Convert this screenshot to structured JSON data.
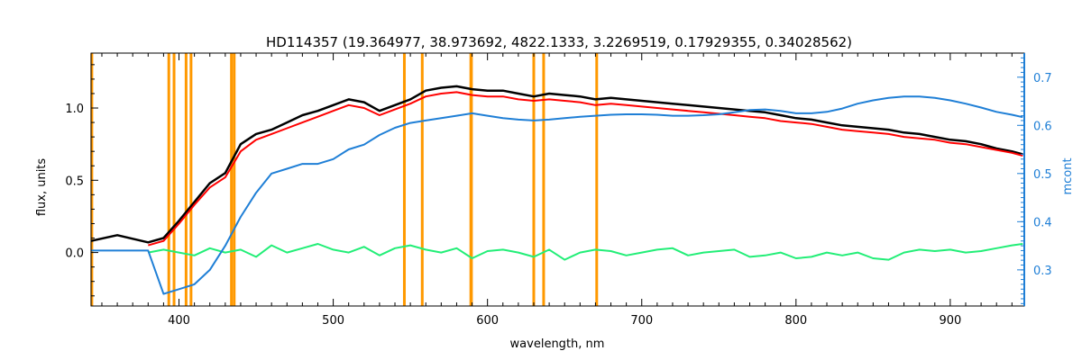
{
  "chart_data": {
    "type": "line",
    "title": "HD114357    (19.364977, 38.973692, 4822.1333, 3.2269519, 0.17929355, 0.34028562)",
    "xlabel": "wavelength, nm",
    "ylabel": "flux, units",
    "ylabel_right": "mcont",
    "xlim": [
      343,
      948
    ],
    "ylim": [
      -0.37,
      1.38
    ],
    "ylim_right": [
      0.225,
      0.75
    ],
    "x_ticks": [
      400,
      500,
      600,
      700,
      800,
      900
    ],
    "x_ticklabels": [
      "400",
      "500",
      "600",
      "700",
      "800",
      "900"
    ],
    "y_ticks": [
      0.0,
      0.5,
      1.0
    ],
    "y_ticklabels": [
      "0.0",
      "0.5",
      "1.0"
    ],
    "y_right_ticks": [
      0.3,
      0.4,
      0.5,
      0.6,
      0.7
    ],
    "y_right_ticklabels": [
      "0.3",
      "0.4",
      "0.5",
      "0.6",
      "0.7"
    ],
    "grid": false,
    "vertical_lines_x": [
      343.5,
      393.4,
      396.8,
      404.6,
      407.8,
      434.0,
      435.8,
      546.1,
      557.7,
      589.2,
      589.6,
      630.0,
      636.4,
      670.8
    ],
    "series": [
      {
        "role": "observed",
        "color": "#000000",
        "x": [
          343,
          360,
          380,
          390,
          400,
          410,
          420,
          430,
          440,
          450,
          460,
          470,
          480,
          490,
          500,
          510,
          520,
          530,
          540,
          550,
          560,
          570,
          580,
          590,
          600,
          610,
          620,
          630,
          640,
          650,
          660,
          670,
          680,
          690,
          700,
          710,
          720,
          730,
          740,
          750,
          760,
          770,
          780,
          790,
          800,
          810,
          820,
          830,
          840,
          850,
          860,
          870,
          880,
          890,
          900,
          910,
          920,
          930,
          940,
          947
        ],
        "y": [
          0.08,
          0.12,
          0.07,
          0.1,
          0.22,
          0.35,
          0.48,
          0.55,
          0.75,
          0.82,
          0.85,
          0.9,
          0.95,
          0.98,
          1.02,
          1.06,
          1.04,
          0.98,
          1.02,
          1.06,
          1.12,
          1.14,
          1.15,
          1.13,
          1.12,
          1.12,
          1.1,
          1.08,
          1.1,
          1.09,
          1.08,
          1.06,
          1.07,
          1.06,
          1.05,
          1.04,
          1.03,
          1.02,
          1.01,
          1.0,
          0.99,
          0.98,
          0.97,
          0.95,
          0.93,
          0.92,
          0.9,
          0.88,
          0.87,
          0.86,
          0.85,
          0.83,
          0.82,
          0.8,
          0.78,
          0.77,
          0.75,
          0.72,
          0.7,
          0.68
        ]
      },
      {
        "role": "model",
        "color": "#ff0000",
        "x": [
          380,
          390,
          400,
          410,
          420,
          430,
          440,
          450,
          460,
          470,
          480,
          490,
          500,
          510,
          520,
          530,
          540,
          550,
          560,
          570,
          580,
          590,
          600,
          610,
          620,
          630,
          640,
          650,
          660,
          670,
          680,
          690,
          700,
          710,
          720,
          730,
          740,
          750,
          760,
          770,
          780,
          790,
          800,
          810,
          820,
          830,
          840,
          850,
          860,
          870,
          880,
          890,
          900,
          910,
          920,
          930,
          940,
          947
        ],
        "y": [
          0.05,
          0.08,
          0.2,
          0.33,
          0.45,
          0.52,
          0.7,
          0.78,
          0.82,
          0.86,
          0.9,
          0.94,
          0.98,
          1.02,
          1.0,
          0.95,
          0.99,
          1.03,
          1.08,
          1.1,
          1.11,
          1.09,
          1.08,
          1.08,
          1.06,
          1.05,
          1.06,
          1.05,
          1.04,
          1.02,
          1.03,
          1.02,
          1.01,
          1.0,
          0.99,
          0.98,
          0.97,
          0.96,
          0.95,
          0.94,
          0.93,
          0.91,
          0.9,
          0.89,
          0.87,
          0.85,
          0.84,
          0.83,
          0.82,
          0.8,
          0.79,
          0.78,
          0.76,
          0.75,
          0.73,
          0.71,
          0.69,
          0.67
        ]
      },
      {
        "role": "residual",
        "color": "#22ee77",
        "x": [
          380,
          390,
          400,
          410,
          420,
          430,
          440,
          450,
          460,
          470,
          480,
          490,
          500,
          510,
          520,
          530,
          540,
          550,
          560,
          570,
          580,
          590,
          600,
          610,
          620,
          630,
          640,
          650,
          660,
          670,
          680,
          690,
          700,
          710,
          720,
          730,
          740,
          750,
          760,
          770,
          780,
          790,
          800,
          810,
          820,
          830,
          840,
          850,
          860,
          870,
          880,
          890,
          900,
          910,
          920,
          930,
          940,
          947
        ],
        "y": [
          0.0,
          0.02,
          0.0,
          -0.02,
          0.03,
          0.0,
          0.02,
          -0.03,
          0.05,
          0.0,
          0.03,
          0.06,
          0.02,
          0.0,
          0.04,
          -0.02,
          0.03,
          0.05,
          0.02,
          0.0,
          0.03,
          -0.04,
          0.01,
          0.02,
          0.0,
          -0.03,
          0.02,
          -0.05,
          0.0,
          0.02,
          0.01,
          -0.02,
          0.0,
          0.02,
          0.03,
          -0.02,
          0.0,
          0.01,
          0.02,
          -0.03,
          -0.02,
          0.0,
          -0.04,
          -0.03,
          0.0,
          -0.02,
          0.0,
          -0.04,
          -0.05,
          0.0,
          0.02,
          0.01,
          0.02,
          0.0,
          0.01,
          0.03,
          0.05,
          0.06
        ]
      },
      {
        "role": "continuum",
        "color": "#1f7fd6",
        "axis": "right",
        "x": [
          343,
          380,
          390,
          400,
          410,
          420,
          430,
          440,
          450,
          460,
          470,
          480,
          490,
          500,
          510,
          520,
          530,
          540,
          550,
          560,
          570,
          580,
          590,
          600,
          610,
          620,
          630,
          640,
          650,
          660,
          670,
          680,
          690,
          700,
          710,
          720,
          730,
          740,
          750,
          760,
          770,
          780,
          790,
          800,
          810,
          820,
          830,
          840,
          850,
          860,
          870,
          880,
          890,
          900,
          910,
          920,
          930,
          940,
          947
        ],
        "y": [
          0.34,
          0.34,
          0.25,
          0.26,
          0.27,
          0.3,
          0.35,
          0.41,
          0.46,
          0.5,
          0.51,
          0.52,
          0.52,
          0.53,
          0.55,
          0.56,
          0.58,
          0.595,
          0.605,
          0.61,
          0.615,
          0.62,
          0.625,
          0.62,
          0.615,
          0.612,
          0.61,
          0.612,
          0.615,
          0.618,
          0.62,
          0.622,
          0.623,
          0.623,
          0.622,
          0.62,
          0.62,
          0.621,
          0.623,
          0.627,
          0.632,
          0.633,
          0.63,
          0.625,
          0.625,
          0.628,
          0.635,
          0.645,
          0.652,
          0.657,
          0.66,
          0.66,
          0.657,
          0.652,
          0.645,
          0.637,
          0.628,
          0.622,
          0.617
        ]
      }
    ]
  }
}
